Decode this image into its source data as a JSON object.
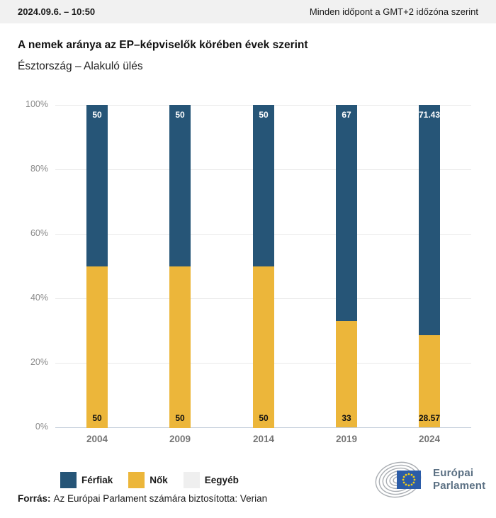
{
  "topbar": {
    "datetime": "2024.09.6. – 10:50",
    "timezone_note": "Minden időpont a GMT+2 időzóna szerint"
  },
  "header": {
    "title": "A nemek aránya az EP–képviselők körében évek szerint",
    "subtitle": "Észtország – Alakuló ülés"
  },
  "chart_data": {
    "type": "bar",
    "stacked": true,
    "categories": [
      "2004",
      "2009",
      "2014",
      "2019",
      "2024"
    ],
    "series": [
      {
        "name": "Férfiak",
        "color": "#265577",
        "values": [
          50,
          50,
          50,
          67,
          71.43
        ],
        "labels": [
          "50",
          "50",
          "50",
          "67",
          "71.43"
        ],
        "label_color": "#ffffff"
      },
      {
        "name": "Nők",
        "color": "#ECB63A",
        "values": [
          50,
          50,
          50,
          33,
          28.57
        ],
        "labels": [
          "50",
          "50",
          "50",
          "33",
          "28.57"
        ],
        "label_color": "#111111"
      },
      {
        "name": "Eegyéb",
        "color": "#EFEFEF",
        "values": [
          0,
          0,
          0,
          0,
          0
        ],
        "labels": [
          "",
          "",
          "",
          "",
          ""
        ],
        "label_color": "#111111"
      }
    ],
    "title": "A nemek aránya az EP–képviselők körében évek szerint",
    "subtitle": "Észtország – Alakuló ülés",
    "xlabel": "",
    "ylabel": "",
    "ylim": [
      0,
      100
    ],
    "y_ticks": [
      0,
      20,
      40,
      60,
      80,
      100
    ],
    "y_tick_labels": [
      "0%",
      "20%",
      "40%",
      "60%",
      "80%",
      "100%"
    ],
    "grid": true,
    "legend_position": "bottom"
  },
  "legend": {
    "items": [
      {
        "label": "Férfiak",
        "color": "#265577"
      },
      {
        "label": "Nők",
        "color": "#ECB63A"
      },
      {
        "label": "Eegyéb",
        "color": "#EFEFEF"
      }
    ]
  },
  "footer": {
    "source_label": "Forrás:",
    "source_text": "Az Európai Parlament számára biztosította: Verian"
  },
  "logo": {
    "line1": "Európai",
    "line2": "Parlament"
  },
  "colors": {
    "men": "#265577",
    "women": "#ECB63A",
    "other": "#EFEFEF",
    "gridline": "#E8E8E8",
    "axis_line": "#C3CEDA",
    "topbar_bg": "#F1F1F1",
    "eu_flag_blue": "#2B5CA8",
    "eu_star_yellow": "#F2CD13",
    "logo_gray": "#AAAEB3"
  }
}
